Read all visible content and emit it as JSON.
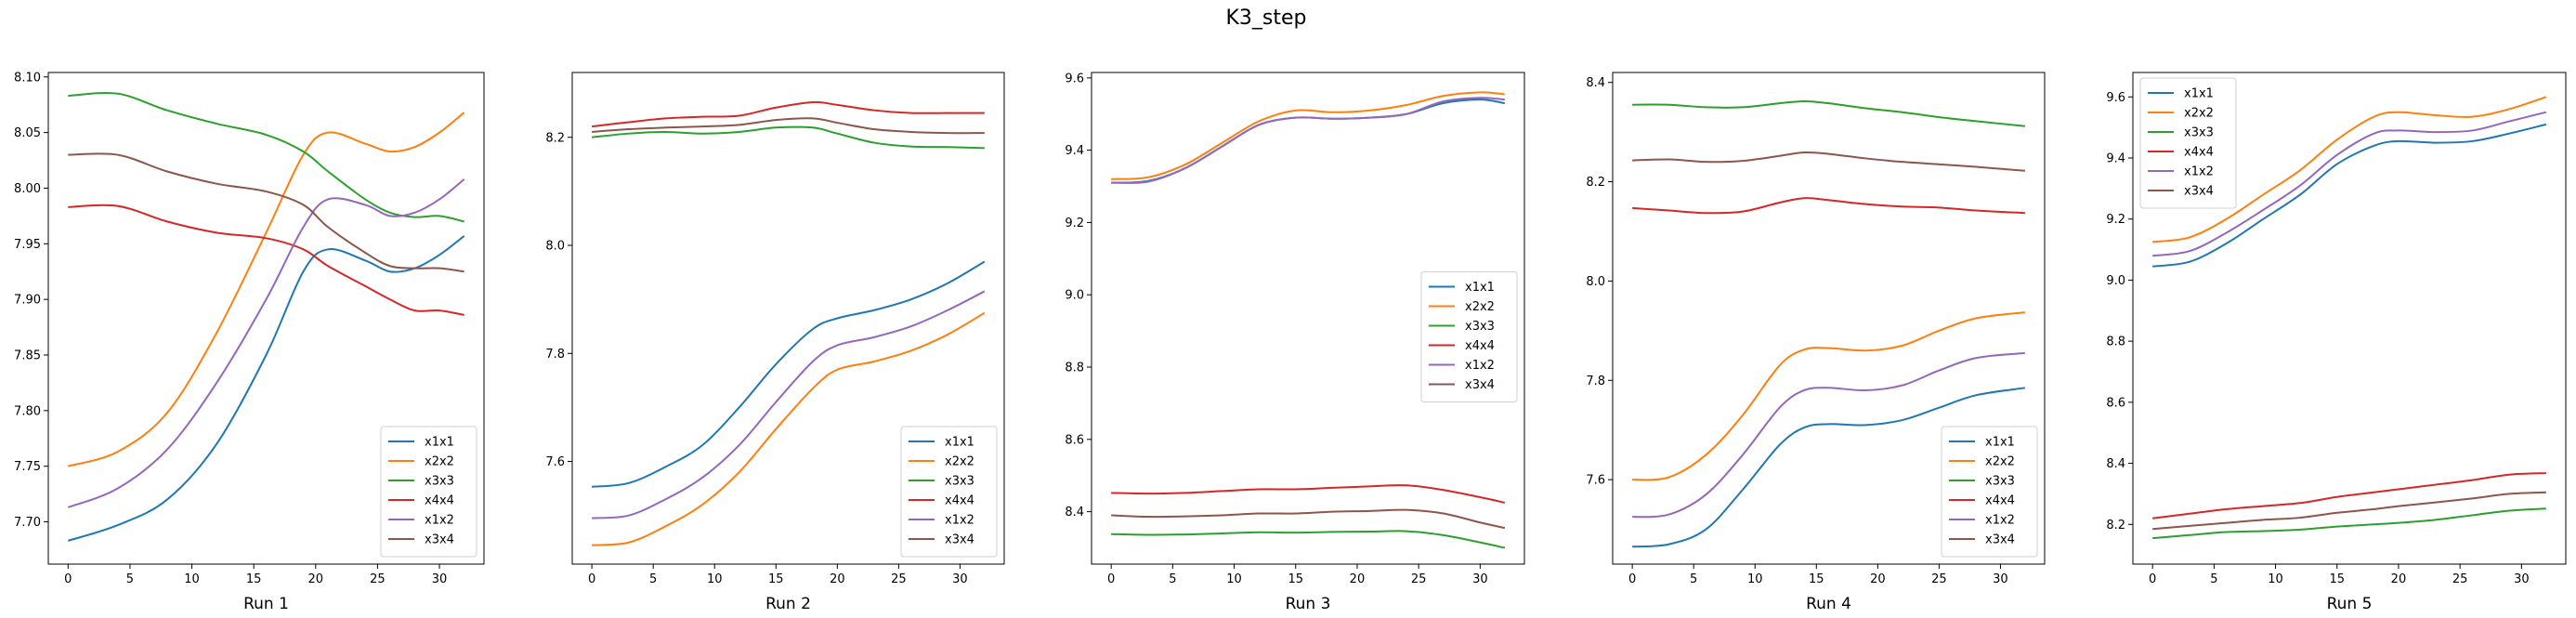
{
  "title": "K3_step",
  "colors": {
    "x1x1": "#1f77b4",
    "x2x2": "#ff7f0e",
    "x3x3": "#2ca02c",
    "x4x4": "#d62728",
    "x1x2": "#9467bd",
    "x3x4": "#8c564b"
  },
  "chart_data": [
    {
      "type": "line",
      "xlabel": "Run 1",
      "xlim": [
        -1.6,
        33.6
      ],
      "ylim": [
        7.662,
        8.104
      ],
      "xticks": [
        0,
        5,
        10,
        15,
        20,
        25,
        30
      ],
      "yticks": [
        7.7,
        7.75,
        7.8,
        7.85,
        7.9,
        7.95,
        8.0,
        8.05,
        8.1
      ],
      "ytick_labels": [
        "7.70",
        "7.75",
        "7.80",
        "7.85",
        "7.90",
        "7.95",
        "8.00",
        "8.05",
        "8.10"
      ],
      "legend": "lower-right",
      "series": [
        {
          "name": "x1x1",
          "x": [
            0,
            4,
            8,
            12,
            16,
            19,
            21,
            24,
            26,
            28,
            30,
            32
          ],
          "y": [
            7.683,
            7.697,
            7.72,
            7.77,
            7.85,
            7.925,
            7.945,
            7.935,
            7.925,
            7.928,
            7.94,
            7.957
          ]
        },
        {
          "name": "x2x2",
          "x": [
            0,
            4,
            8,
            12,
            16,
            19,
            21,
            24,
            26,
            28,
            30,
            32
          ],
          "y": [
            7.75,
            7.763,
            7.798,
            7.87,
            7.96,
            8.03,
            8.05,
            8.04,
            8.033,
            8.037,
            8.05,
            8.068
          ]
        },
        {
          "name": "x3x3",
          "x": [
            0,
            4,
            8,
            12,
            16,
            19,
            21,
            24,
            26,
            28,
            30,
            32
          ],
          "y": [
            8.083,
            8.085,
            8.07,
            8.058,
            8.048,
            8.033,
            8.015,
            7.99,
            7.978,
            7.974,
            7.975,
            7.97
          ]
        },
        {
          "name": "x4x4",
          "x": [
            0,
            4,
            8,
            12,
            16,
            19,
            21,
            24,
            26,
            28,
            30,
            32
          ],
          "y": [
            7.983,
            7.984,
            7.97,
            7.96,
            7.955,
            7.945,
            7.93,
            7.912,
            7.9,
            7.89,
            7.89,
            7.886
          ]
        },
        {
          "name": "x1x2",
          "x": [
            0,
            4,
            8,
            12,
            16,
            19,
            21,
            24,
            26,
            28,
            30,
            32
          ],
          "y": [
            7.713,
            7.73,
            7.765,
            7.825,
            7.9,
            7.965,
            7.99,
            7.985,
            7.975,
            7.978,
            7.99,
            8.008
          ]
        },
        {
          "name": "x3x4",
          "x": [
            0,
            4,
            8,
            12,
            16,
            19,
            21,
            24,
            26,
            28,
            30,
            32
          ],
          "y": [
            8.03,
            8.03,
            8.015,
            8.004,
            7.997,
            7.985,
            7.965,
            7.942,
            7.93,
            7.928,
            7.928,
            7.925
          ]
        }
      ]
    },
    {
      "type": "line",
      "xlabel": "Run 2",
      "xlim": [
        -1.6,
        33.6
      ],
      "ylim": [
        7.41,
        8.32
      ],
      "xticks": [
        0,
        5,
        10,
        15,
        20,
        25,
        30
      ],
      "yticks": [
        7.6,
        7.8,
        8.0,
        8.2
      ],
      "ytick_labels": [
        "7.6",
        "7.8",
        "8.0",
        "8.2"
      ],
      "legend": "lower-right",
      "series": [
        {
          "name": "x1x1",
          "x": [
            0,
            3,
            6,
            9,
            12,
            15,
            18,
            20,
            23,
            26,
            29,
            32
          ],
          "y": [
            7.553,
            7.56,
            7.59,
            7.63,
            7.7,
            7.78,
            7.845,
            7.865,
            7.88,
            7.9,
            7.93,
            7.97
          ]
        },
        {
          "name": "x2x2",
          "x": [
            0,
            3,
            6,
            9,
            12,
            15,
            18,
            20,
            23,
            26,
            29,
            32
          ],
          "y": [
            7.445,
            7.45,
            7.48,
            7.52,
            7.58,
            7.66,
            7.735,
            7.77,
            7.785,
            7.805,
            7.835,
            7.875
          ]
        },
        {
          "name": "x3x3",
          "x": [
            0,
            3,
            6,
            9,
            12,
            15,
            18,
            20,
            23,
            26,
            29,
            32
          ],
          "y": [
            8.2,
            8.207,
            8.21,
            8.207,
            8.21,
            8.218,
            8.218,
            8.207,
            8.19,
            8.183,
            8.182,
            8.18
          ]
        },
        {
          "name": "x4x4",
          "x": [
            0,
            3,
            6,
            9,
            12,
            15,
            18,
            20,
            23,
            26,
            29,
            32
          ],
          "y": [
            8.22,
            8.228,
            8.235,
            8.238,
            8.24,
            8.255,
            8.265,
            8.26,
            8.25,
            8.245,
            8.245,
            8.245
          ]
        },
        {
          "name": "x1x2",
          "x": [
            0,
            3,
            6,
            9,
            12,
            15,
            18,
            20,
            23,
            26,
            29,
            32
          ],
          "y": [
            7.495,
            7.5,
            7.53,
            7.57,
            7.63,
            7.71,
            7.785,
            7.815,
            7.83,
            7.85,
            7.88,
            7.915
          ]
        },
        {
          "name": "x3x4",
          "x": [
            0,
            3,
            6,
            9,
            12,
            15,
            18,
            20,
            23,
            26,
            29,
            32
          ],
          "y": [
            8.21,
            8.215,
            8.218,
            8.22,
            8.223,
            8.232,
            8.235,
            8.227,
            8.215,
            8.21,
            8.208,
            8.208
          ]
        }
      ]
    },
    {
      "type": "line",
      "xlabel": "Run 3",
      "xlim": [
        -1.6,
        33.6
      ],
      "ylim": [
        8.255,
        9.615
      ],
      "xticks": [
        0,
        5,
        10,
        15,
        20,
        25,
        30
      ],
      "yticks": [
        8.4,
        8.6,
        8.8,
        9.0,
        9.2,
        9.4,
        9.6
      ],
      "ytick_labels": [
        "8.4",
        "8.6",
        "8.8",
        "9.0",
        "9.2",
        "9.4",
        "9.6"
      ],
      "legend": "center-right",
      "series": [
        {
          "name": "x1x1",
          "x": [
            0,
            3,
            6,
            9,
            12,
            15,
            18,
            21,
            24,
            27,
            30,
            32
          ],
          "y": [
            9.31,
            9.315,
            9.35,
            9.41,
            9.47,
            9.49,
            9.487,
            9.49,
            9.5,
            9.53,
            9.54,
            9.53
          ]
        },
        {
          "name": "x2x2",
          "x": [
            0,
            3,
            6,
            9,
            12,
            15,
            18,
            21,
            24,
            27,
            30,
            32
          ],
          "y": [
            9.32,
            9.325,
            9.36,
            9.42,
            9.48,
            9.51,
            9.505,
            9.51,
            9.525,
            9.55,
            9.56,
            9.555
          ]
        },
        {
          "name": "x3x3",
          "x": [
            0,
            3,
            6,
            9,
            12,
            15,
            18,
            21,
            24,
            27,
            30,
            32
          ],
          "y": [
            8.338,
            8.336,
            8.337,
            8.34,
            8.343,
            8.342,
            8.344,
            8.345,
            8.346,
            8.335,
            8.315,
            8.3
          ]
        },
        {
          "name": "x4x4",
          "x": [
            0,
            3,
            6,
            9,
            12,
            15,
            18,
            21,
            24,
            27,
            30,
            32
          ],
          "y": [
            8.452,
            8.45,
            8.452,
            8.457,
            8.462,
            8.462,
            8.466,
            8.47,
            8.473,
            8.46,
            8.44,
            8.425
          ]
        },
        {
          "name": "x1x2",
          "x": [
            0,
            3,
            6,
            9,
            12,
            15,
            18,
            21,
            24,
            27,
            30,
            32
          ],
          "y": [
            9.31,
            9.313,
            9.35,
            9.41,
            9.47,
            9.49,
            9.487,
            9.49,
            9.5,
            9.535,
            9.545,
            9.54
          ]
        },
        {
          "name": "x3x4",
          "x": [
            0,
            3,
            6,
            9,
            12,
            15,
            18,
            21,
            24,
            27,
            30,
            32
          ],
          "y": [
            8.39,
            8.386,
            8.387,
            8.39,
            8.395,
            8.395,
            8.4,
            8.402,
            8.405,
            8.395,
            8.37,
            8.355
          ]
        }
      ]
    },
    {
      "type": "line",
      "xlabel": "Run 4",
      "xlim": [
        -1.6,
        33.6
      ],
      "ylim": [
        7.43,
        8.42
      ],
      "xticks": [
        0,
        5,
        10,
        15,
        20,
        25,
        30
      ],
      "yticks": [
        7.6,
        7.8,
        8.0,
        8.2,
        8.4
      ],
      "ytick_labels": [
        "7.6",
        "7.8",
        "8.0",
        "8.2",
        "8.4"
      ],
      "legend": "lower-right",
      "series": [
        {
          "name": "x1x1",
          "x": [
            0,
            3,
            6,
            9,
            12,
            14,
            16,
            19,
            22,
            25,
            28,
            32
          ],
          "y": [
            7.465,
            7.47,
            7.5,
            7.58,
            7.67,
            7.705,
            7.712,
            7.71,
            7.72,
            7.745,
            7.77,
            7.785
          ]
        },
        {
          "name": "x2x2",
          "x": [
            0,
            3,
            6,
            9,
            12,
            14,
            16,
            19,
            22,
            25,
            28,
            32
          ],
          "y": [
            7.6,
            7.605,
            7.65,
            7.73,
            7.83,
            7.862,
            7.865,
            7.86,
            7.87,
            7.9,
            7.925,
            7.937
          ]
        },
        {
          "name": "x3x3",
          "x": [
            0,
            3,
            6,
            9,
            12,
            14,
            16,
            19,
            22,
            25,
            28,
            32
          ],
          "y": [
            8.355,
            8.355,
            8.35,
            8.35,
            8.358,
            8.362,
            8.358,
            8.348,
            8.34,
            8.33,
            8.322,
            8.312
          ]
        },
        {
          "name": "x4x4",
          "x": [
            0,
            3,
            6,
            9,
            12,
            14,
            16,
            19,
            22,
            25,
            28,
            32
          ],
          "y": [
            8.147,
            8.142,
            8.137,
            8.14,
            8.158,
            8.167,
            8.163,
            8.155,
            8.15,
            8.148,
            8.142,
            8.137
          ]
        },
        {
          "name": "x1x2",
          "x": [
            0,
            3,
            6,
            9,
            12,
            14,
            16,
            19,
            22,
            25,
            28,
            32
          ],
          "y": [
            7.525,
            7.53,
            7.57,
            7.65,
            7.745,
            7.78,
            7.785,
            7.78,
            7.79,
            7.82,
            7.845,
            7.855
          ]
        },
        {
          "name": "x3x4",
          "x": [
            0,
            3,
            6,
            9,
            12,
            14,
            16,
            19,
            22,
            25,
            28,
            32
          ],
          "y": [
            8.243,
            8.245,
            8.24,
            8.242,
            8.252,
            8.259,
            8.256,
            8.247,
            8.24,
            8.235,
            8.23,
            8.222
          ]
        }
      ]
    },
    {
      "type": "line",
      "xlabel": "Run 5",
      "xlim": [
        -1.6,
        33.6
      ],
      "ylim": [
        8.07,
        9.68
      ],
      "xticks": [
        0,
        5,
        10,
        15,
        20,
        25,
        30
      ],
      "yticks": [
        8.2,
        8.4,
        8.6,
        8.8,
        9.0,
        9.2,
        9.4,
        9.6
      ],
      "ytick_labels": [
        "8.2",
        "8.4",
        "8.6",
        "8.8",
        "9.0",
        "9.2",
        "9.4",
        "9.6"
      ],
      "legend": "upper-left",
      "series": [
        {
          "name": "x1x1",
          "x": [
            0,
            3,
            6,
            9,
            12,
            15,
            18,
            20,
            23,
            26,
            29,
            32
          ],
          "y": [
            9.045,
            9.06,
            9.12,
            9.2,
            9.28,
            9.38,
            9.44,
            9.455,
            9.45,
            9.455,
            9.48,
            9.51
          ]
        },
        {
          "name": "x2x2",
          "x": [
            0,
            3,
            6,
            9,
            12,
            15,
            18,
            20,
            23,
            26,
            29,
            32
          ],
          "y": [
            9.125,
            9.14,
            9.2,
            9.28,
            9.36,
            9.46,
            9.535,
            9.55,
            9.54,
            9.535,
            9.56,
            9.6
          ]
        },
        {
          "name": "x3x3",
          "x": [
            0,
            3,
            6,
            9,
            12,
            15,
            18,
            20,
            23,
            26,
            29,
            32
          ],
          "y": [
            8.155,
            8.165,
            8.175,
            8.178,
            8.183,
            8.193,
            8.2,
            8.205,
            8.215,
            8.23,
            8.245,
            8.252
          ]
        },
        {
          "name": "x4x4",
          "x": [
            0,
            3,
            6,
            9,
            12,
            15,
            18,
            20,
            23,
            26,
            29,
            32
          ],
          "y": [
            8.22,
            8.235,
            8.25,
            8.26,
            8.27,
            8.29,
            8.305,
            8.315,
            8.33,
            8.345,
            8.363,
            8.368
          ]
        },
        {
          "name": "x1x2",
          "x": [
            0,
            3,
            6,
            9,
            12,
            15,
            18,
            20,
            23,
            26,
            29,
            32
          ],
          "y": [
            9.08,
            9.095,
            9.155,
            9.23,
            9.31,
            9.41,
            9.48,
            9.49,
            9.485,
            9.49,
            9.52,
            9.55
          ]
        },
        {
          "name": "x3x4",
          "x": [
            0,
            3,
            6,
            9,
            12,
            15,
            18,
            20,
            23,
            26,
            29,
            32
          ],
          "y": [
            8.185,
            8.195,
            8.205,
            8.215,
            8.222,
            8.238,
            8.25,
            8.26,
            8.272,
            8.285,
            8.3,
            8.305
          ]
        }
      ]
    }
  ]
}
